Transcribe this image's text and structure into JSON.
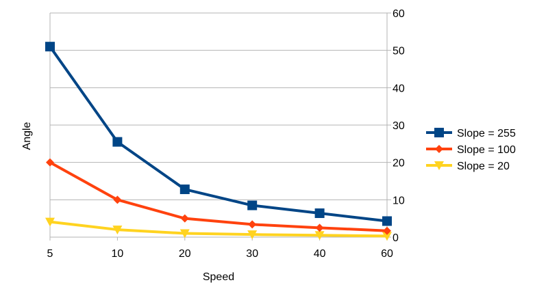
{
  "chart_data": {
    "type": "line",
    "title": "",
    "xlabel": "Speed",
    "ylabel": "Angle",
    "categories": [
      "5",
      "10",
      "20",
      "30",
      "40",
      "60"
    ],
    "y_axis_side": "right",
    "ylim": [
      0,
      60
    ],
    "yticks": [
      "0",
      "10",
      "20",
      "30",
      "40",
      "50",
      "60"
    ],
    "grid": true,
    "legend_position": "right",
    "series": [
      {
        "name": "Slope = 255",
        "values": [
          51,
          25.5,
          12.8,
          8.5,
          6.4,
          4.3
        ],
        "color": "#004586",
        "marker": "square"
      },
      {
        "name": "Slope = 100",
        "values": [
          20,
          10,
          5,
          3.4,
          2.5,
          1.7
        ],
        "color": "#ff420e",
        "marker": "diamond"
      },
      {
        "name": "Slope = 20",
        "values": [
          4.1,
          2,
          1,
          0.7,
          0.5,
          0.3
        ],
        "color": "#ffd320",
        "marker": "triangle-down"
      }
    ]
  }
}
